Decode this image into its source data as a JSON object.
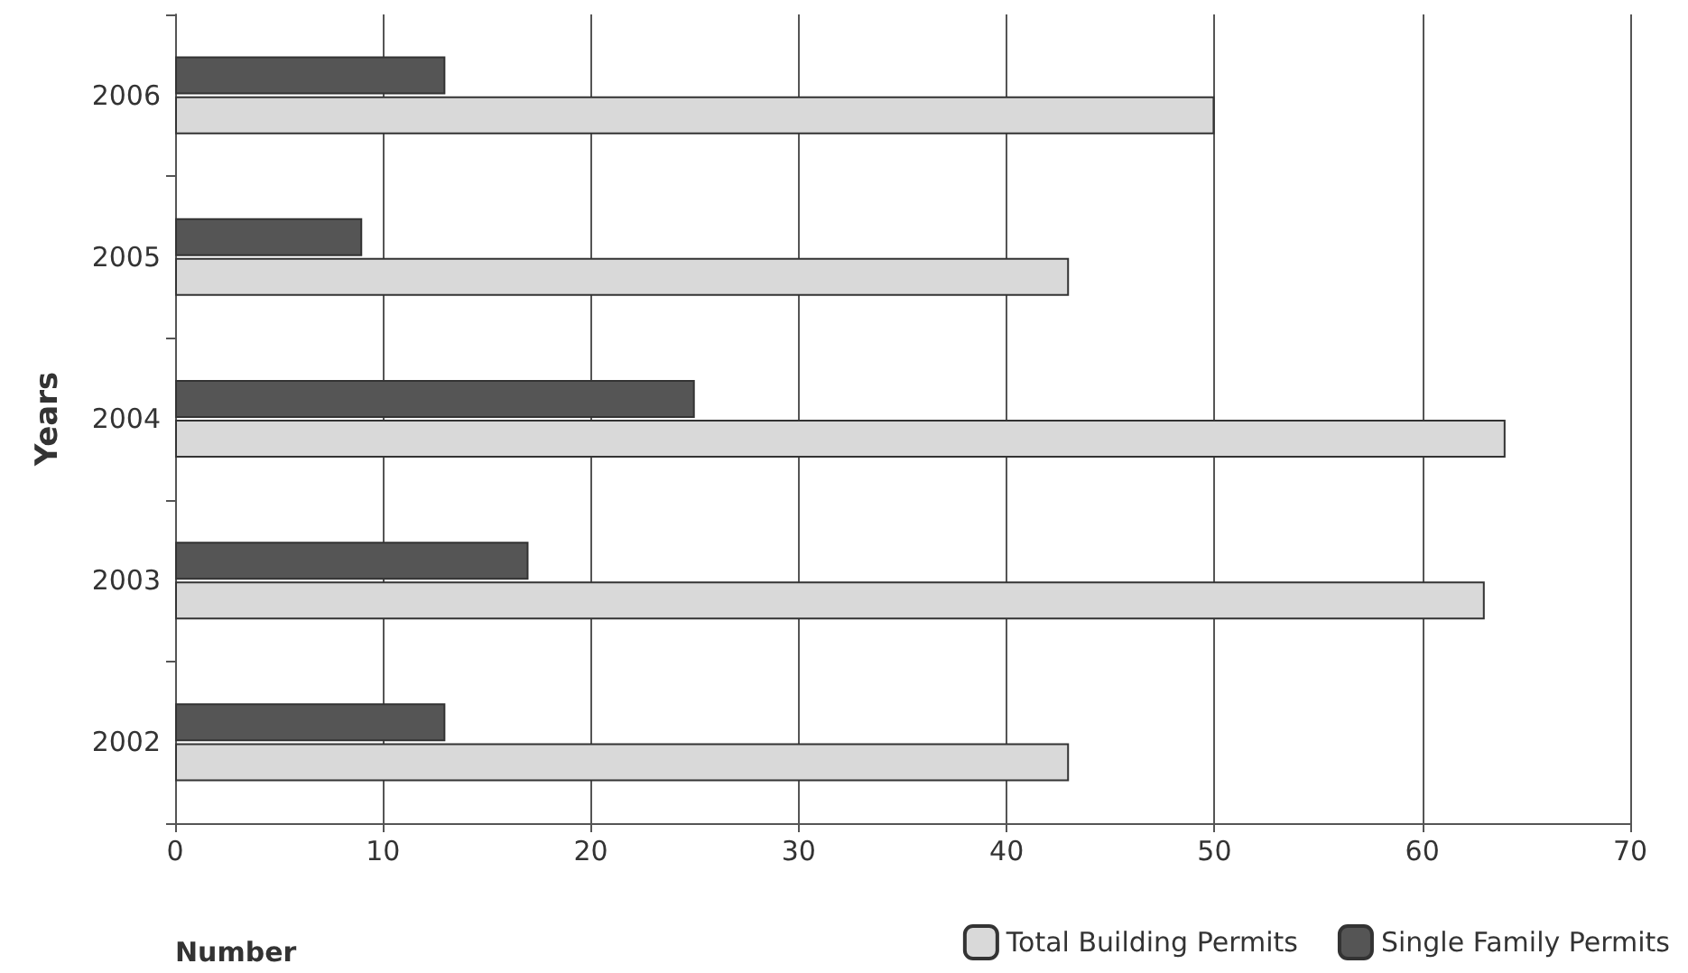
{
  "chart_data": {
    "type": "bar",
    "orientation": "horizontal",
    "xlabel": "Number",
    "ylabel": "Years",
    "categories": [
      "2006",
      "2005",
      "2004",
      "2003",
      "2002"
    ],
    "series": [
      {
        "name": "Total Building Permits",
        "color": "#d9d9d9",
        "values": [
          50,
          43,
          64,
          63,
          43
        ]
      },
      {
        "name": "Single Family Permits",
        "color": "#555555",
        "values": [
          13,
          9,
          25,
          17,
          13
        ]
      }
    ],
    "xlim": [
      0,
      70
    ],
    "xticks": [
      0,
      10,
      20,
      30,
      40,
      50,
      60,
      70
    ],
    "grid": "x",
    "legend": "bottom right"
  }
}
